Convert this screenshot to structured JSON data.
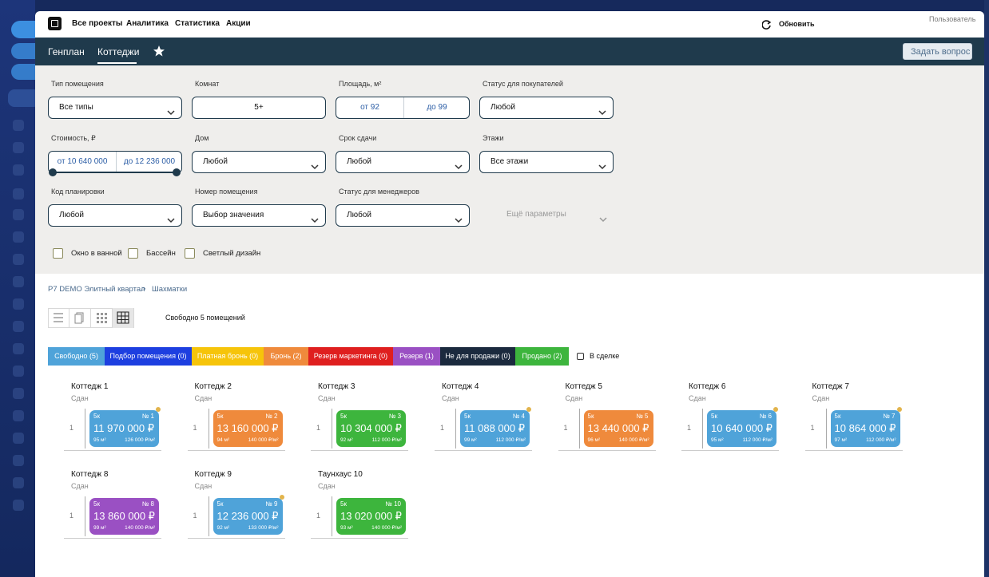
{
  "header": {
    "nav": [
      "Все проекты",
      "Аналитика",
      "Статистика",
      "Акции"
    ],
    "refresh": "Обновить",
    "user": "Пользователь"
  },
  "tabs": [
    "Генплан",
    "Коттеджи"
  ],
  "ask_button": "Задать вопрос",
  "filters": {
    "rows": [
      [
        {
          "label": "Тип помещения",
          "value": "Все типы"
        },
        {
          "label": "Комнат",
          "value": "5+"
        },
        {
          "label": "Площадь, м²",
          "from": "от 92",
          "to": "до 99"
        },
        {
          "label": "Статус для покупателей",
          "value": "Любой"
        }
      ],
      [
        {
          "label": "Стоимость, ₽",
          "from": "от 10 640 000",
          "to": "до 12 236 000"
        },
        {
          "label": "Дом",
          "value": "Любой"
        },
        {
          "label": "Срок сдачи",
          "value": "Любой"
        },
        {
          "label": "Этажи",
          "value": "Все этажи"
        }
      ],
      [
        {
          "label": "Код планировки",
          "value": "Любой"
        },
        {
          "label": "Номер помещения",
          "value": "Выбор значения"
        },
        {
          "label": "Статус для менеджеров",
          "value": "Любой"
        }
      ]
    ],
    "more": "Ещё параметры",
    "checkboxes": [
      "Окно в ванной",
      "Бассейн",
      "Светлый дизайн"
    ]
  },
  "breadcrumb": {
    "items": [
      "P7 DEMO Элитный квартал",
      "Шахматки"
    ],
    "separator": ">"
  },
  "free_count": "Свободно 5 помещений",
  "statuses": [
    {
      "label": "Свободно (5)",
      "color": "#4fa3d9"
    },
    {
      "label": "Подбор помещения (0)",
      "color": "#1d3fe0"
    },
    {
      "label": "Платная бронь (0)",
      "color": "#f6c40a"
    },
    {
      "label": "Бронь (2)",
      "color": "#ef8a3c"
    },
    {
      "label": "Резерв маркетинга (0)",
      "color": "#df1f1f"
    },
    {
      "label": "Резерв (1)",
      "color": "#9a50c3"
    },
    {
      "label": "Не для продажи (0)",
      "color": "#1b2a3e"
    },
    {
      "label": "Продано (2)",
      "color": "#3db53d"
    }
  ],
  "in_deal": "В сделке",
  "buildings": [
    {
      "name": "Коттедж 1",
      "state": "Сдан",
      "floor": "1",
      "unit": {
        "rooms": "5к",
        "number": "№ 1",
        "price": "11 970 000 ₽",
        "area": "95 м²",
        "price_per_m2": "126 000 ₽/м²",
        "color": "#4fa3d9",
        "marker": true
      }
    },
    {
      "name": "Коттедж 2",
      "state": "Сдан",
      "floor": "1",
      "unit": {
        "rooms": "5к",
        "number": "№ 2",
        "price": "13 160 000 ₽",
        "area": "94 м²",
        "price_per_m2": "140 000 ₽/м²",
        "color": "#ef8a3c",
        "marker": false
      }
    },
    {
      "name": "Коттедж 3",
      "state": "Сдан",
      "floor": "1",
      "unit": {
        "rooms": "5к",
        "number": "№ 3",
        "price": "10 304 000 ₽",
        "area": "92 м²",
        "price_per_m2": "112 000 ₽/м²",
        "color": "#3db53d",
        "marker": false
      }
    },
    {
      "name": "Коттедж 4",
      "state": "Сдан",
      "floor": "1",
      "unit": {
        "rooms": "5к",
        "number": "№ 4",
        "price": "11 088 000 ₽",
        "area": "99 м²",
        "price_per_m2": "112 000 ₽/м²",
        "color": "#4fa3d9",
        "marker": true
      }
    },
    {
      "name": "Коттедж 5",
      "state": "Сдан",
      "floor": "1",
      "unit": {
        "rooms": "5к",
        "number": "№ 5",
        "price": "13 440 000 ₽",
        "area": "96 м²",
        "price_per_m2": "140 000 ₽/м²",
        "color": "#ef8a3c",
        "marker": false
      }
    },
    {
      "name": "Коттедж 6",
      "state": "Сдан",
      "floor": "1",
      "unit": {
        "rooms": "5к",
        "number": "№ 6",
        "price": "10 640 000 ₽",
        "area": "95 м²",
        "price_per_m2": "112 000 ₽/м²",
        "color": "#4fa3d9",
        "marker": true
      }
    },
    {
      "name": "Коттедж 7",
      "state": "Сдан",
      "floor": "1",
      "unit": {
        "rooms": "5к",
        "number": "№ 7",
        "price": "10 864 000 ₽",
        "area": "97 м²",
        "price_per_m2": "112 000 ₽/м²",
        "color": "#4fa3d9",
        "marker": true
      }
    },
    {
      "name": "Коттедж 8",
      "state": "Сдан",
      "floor": "1",
      "unit": {
        "rooms": "5к",
        "number": "№ 8",
        "price": "13 860 000 ₽",
        "area": "99 м²",
        "price_per_m2": "140 000 ₽/м²",
        "color": "#9a50c3",
        "marker": false
      }
    },
    {
      "name": "Коттедж 9",
      "state": "Сдан",
      "floor": "1",
      "unit": {
        "rooms": "5к",
        "number": "№ 9",
        "price": "12 236 000 ₽",
        "area": "92 м²",
        "price_per_m2": "133 000 ₽/м²",
        "color": "#4fa3d9",
        "marker": true
      }
    },
    {
      "name": "Таунхаус 10",
      "state": "Сдан",
      "floor": "1",
      "unit": {
        "rooms": "5к",
        "number": "№ 10",
        "price": "13 020 000 ₽",
        "area": "93 м²",
        "price_per_m2": "140 000 ₽/м²",
        "color": "#3db53d",
        "marker": false
      }
    }
  ]
}
